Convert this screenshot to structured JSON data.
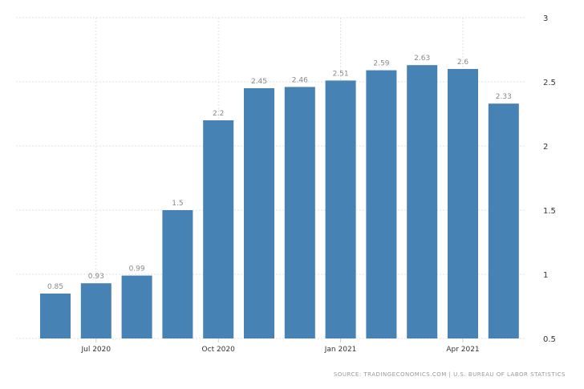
{
  "chart_data": {
    "type": "bar",
    "categories": [
      "Jun 2020",
      "Jul 2020",
      "Aug 2020",
      "Sep 2020",
      "Oct 2020",
      "Nov 2020",
      "Dec 2020",
      "Jan 2021",
      "Feb 2021",
      "Mar 2021",
      "Apr 2021",
      "May 2021"
    ],
    "values": [
      0.85,
      0.93,
      0.99,
      1.5,
      2.2,
      2.45,
      2.46,
      2.51,
      2.59,
      2.63,
      2.6,
      2.33
    ],
    "data_labels": [
      "0.85",
      "0.93",
      "0.99",
      "1.5",
      "2.2",
      "2.45",
      "2.46",
      "2.51",
      "2.59",
      "2.63",
      "2.6",
      "2.33"
    ],
    "x_tick_labels": [
      {
        "category": "Jul 2020",
        "label": "Jul 2020"
      },
      {
        "category": "Oct 2020",
        "label": "Oct 2020"
      },
      {
        "category": "Jan 2021",
        "label": "Jan 2021"
      },
      {
        "category": "Apr 2021",
        "label": "Apr 2021"
      }
    ],
    "y_ticks": [
      0.5,
      1,
      1.5,
      2,
      2.5,
      3
    ],
    "y_tick_labels": [
      "0.5",
      "1",
      "1.5",
      "2",
      "2.5",
      "3"
    ],
    "ylim": [
      0.5,
      3
    ],
    "y_axis_side": "right",
    "grid": true,
    "title": "",
    "xlabel": "",
    "ylabel": "",
    "bar_color": "#4682b4",
    "label_color": "#888888"
  },
  "source": "SOURCE: TRADINGECONOMICS.COM | U.S. BUREAU OF LABOR STATISTICS"
}
